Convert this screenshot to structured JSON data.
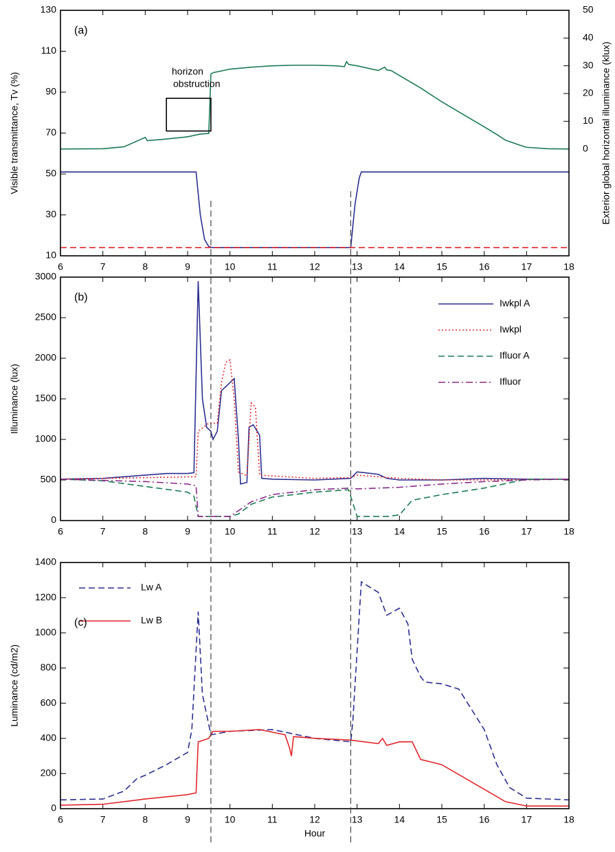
{
  "chart_data": [
    {
      "type": "line",
      "panel_label": "(a)",
      "ylabel": "Visible transmittance, Tv (%)",
      "y2label": "Exterior global horizontal illuminance (klux)",
      "xlim": [
        6,
        18
      ],
      "xticks": [
        6,
        7,
        8,
        9,
        10,
        11,
        12,
        13,
        14,
        15,
        16,
        17,
        18
      ],
      "ylim": [
        10,
        130
      ],
      "yticks": [
        10,
        30,
        50,
        70,
        90,
        110,
        130
      ],
      "y2lim": [
        -38.5,
        50
      ],
      "y2ticks": [
        0,
        10,
        20,
        30,
        40,
        50
      ],
      "vlines": [
        9.55,
        12.85
      ],
      "annotations": [
        {
          "text_lines": [
            "horizon",
            "obstruction"
          ],
          "box": {
            "x": [
              8.5,
              9.55
            ],
            "y": [
              71,
              87
            ]
          }
        }
      ],
      "series": [
        {
          "color": "#1a7a52",
          "style": "solid",
          "axis": "y2",
          "x": [
            6,
            7,
            7.5,
            7.9,
            8,
            8.05,
            8.5,
            9,
            9.3,
            9.5,
            9.55,
            9.6,
            10,
            10.5,
            11,
            11.5,
            12,
            12.5,
            12.7,
            12.75,
            12.8,
            13,
            13.5,
            13.65,
            13.7,
            13.8,
            14,
            14.5,
            15,
            15.5,
            16,
            16.3,
            16.5,
            16.8,
            17,
            17.5,
            18
          ],
          "values": [
            0,
            0.1,
            0.8,
            3.5,
            4.2,
            3,
            3.6,
            4.4,
            5.4,
            5.6,
            27,
            27.5,
            28.8,
            29.5,
            30,
            30.2,
            30.2,
            30,
            29.7,
            31.5,
            30.5,
            30,
            28.3,
            29.5,
            28.5,
            28.3,
            26.5,
            22,
            17,
            12.5,
            8,
            5.2,
            3.2,
            1.6,
            0.6,
            0.1,
            0
          ]
        },
        {
          "color": "#2b2f8f",
          "style": "solid",
          "x": [
            6,
            9.2,
            9.3,
            9.4,
            9.5,
            9.6,
            12.85,
            12.95,
            13.05,
            13.1,
            18
          ],
          "values": [
            51,
            51,
            30,
            18,
            14.5,
            14,
            14,
            35,
            48,
            51,
            51
          ]
        },
        {
          "color": "#e0262a",
          "style": "dashed",
          "x": [
            6,
            18
          ],
          "values": [
            14,
            14
          ]
        }
      ]
    },
    {
      "type": "line",
      "panel_label": "(b)",
      "ylabel": "Illuminance (lux)",
      "legend": "upper right",
      "xlim": [
        6,
        18
      ],
      "xticks": [
        6,
        7,
        8,
        9,
        10,
        11,
        12,
        13,
        14,
        15,
        16,
        17,
        18
      ],
      "ylim": [
        0,
        3000
      ],
      "yticks": [
        0,
        500,
        1000,
        1500,
        2000,
        2500,
        3000
      ],
      "series": [
        {
          "name": "Iwkpl A",
          "color": "#2b2f8f",
          "style": "solid",
          "x": [
            6,
            7,
            8,
            8.5,
            9,
            9.15,
            9.25,
            9.35,
            9.45,
            9.55,
            9.6,
            9.7,
            9.8,
            9.9,
            10,
            10.1,
            10.2,
            10.25,
            10.4,
            10.45,
            10.55,
            10.7,
            10.75,
            11,
            12,
            12.85,
            13,
            13.5,
            13.7,
            14,
            15,
            16,
            17,
            18
          ],
          "values": [
            510,
            520,
            560,
            580,
            580,
            590,
            2950,
            1500,
            1150,
            1100,
            1000,
            1100,
            1600,
            1650,
            1700,
            1750,
            1000,
            450,
            470,
            1150,
            1180,
            1050,
            520,
            510,
            500,
            520,
            600,
            570,
            520,
            500,
            500,
            520,
            510,
            510
          ]
        },
        {
          "name": "Iwkpl",
          "color": "#e0262a",
          "style": "dotted",
          "x": [
            6,
            9.2,
            9.25,
            9.5,
            9.7,
            9.8,
            9.9,
            10,
            10.1,
            10.2,
            10.4,
            10.5,
            10.6,
            10.7,
            11,
            12,
            12.85,
            13,
            14,
            15,
            16,
            18
          ],
          "values": [
            510,
            540,
            1100,
            1200,
            1200,
            1700,
            1950,
            1980,
            1500,
            600,
            550,
            1450,
            1400,
            560,
            550,
            520,
            530,
            560,
            520,
            500,
            500,
            510
          ]
        },
        {
          "name": "Ifluor A",
          "color": "#1a7a52",
          "style": "dashed",
          "x": [
            6,
            7,
            8,
            9,
            9.15,
            9.25,
            10,
            10.2,
            10.5,
            11,
            12,
            12.8,
            13,
            13.7,
            14,
            14.3,
            15,
            16,
            17,
            18
          ],
          "values": [
            510,
            490,
            420,
            350,
            300,
            50,
            50,
            80,
            200,
            290,
            350,
            380,
            50,
            50,
            70,
            250,
            320,
            400,
            510,
            510
          ]
        },
        {
          "name": "Ifluor",
          "color": "#8a2a8a",
          "style": "dashdot",
          "x": [
            6,
            8,
            9,
            9.2,
            9.25,
            10,
            10.5,
            11,
            12,
            12.85,
            13,
            14,
            15,
            16,
            17,
            18
          ],
          "values": [
            510,
            480,
            450,
            430,
            50,
            50,
            230,
            320,
            380,
            400,
            390,
            410,
            450,
            480,
            500,
            510
          ]
        }
      ]
    },
    {
      "type": "line",
      "panel_label": "(c)",
      "ylabel": "Luminance (cd/m2)",
      "xlabel": "Hour",
      "legend": "upper left",
      "xlim": [
        6,
        18
      ],
      "xticks": [
        6,
        7,
        8,
        9,
        10,
        11,
        12,
        13,
        14,
        15,
        16,
        17,
        18
      ],
      "ylim": [
        0,
        1400
      ],
      "yticks": [
        0,
        200,
        400,
        600,
        800,
        1000,
        1200,
        1400
      ],
      "series": [
        {
          "name": "Lw A",
          "color": "#2b2f8f",
          "style": "dashed",
          "x": [
            6,
            7,
            7.5,
            7.8,
            8,
            8.5,
            9,
            9.1,
            9.25,
            9.35,
            9.55,
            10,
            11,
            12,
            12.85,
            12.9,
            13.1,
            13.5,
            13.7,
            14,
            14.2,
            14.3,
            14.5,
            14.6,
            15,
            15.4,
            16,
            16.3,
            16.6,
            17,
            18
          ],
          "values": [
            50,
            55,
            100,
            170,
            190,
            250,
            320,
            450,
            1120,
            650,
            420,
            440,
            450,
            400,
            380,
            500,
            1290,
            1230,
            1100,
            1140,
            1050,
            850,
            750,
            720,
            710,
            680,
            450,
            250,
            120,
            60,
            50
          ]
        },
        {
          "name": "Lw B",
          "color": "#e0262a",
          "style": "solid",
          "x": [
            6,
            7,
            7.5,
            8,
            9,
            9.2,
            9.25,
            9.5,
            9.6,
            10,
            10.7,
            11.3,
            11.4,
            11.45,
            11.5,
            12,
            12.85,
            13.5,
            13.6,
            13.7,
            14,
            14.3,
            14.5,
            15,
            15.5,
            16,
            16.5,
            17,
            18
          ],
          "values": [
            20,
            25,
            40,
            55,
            80,
            90,
            380,
            400,
            440,
            440,
            450,
            420,
            350,
            300,
            410,
            400,
            390,
            370,
            400,
            360,
            380,
            380,
            280,
            250,
            180,
            110,
            40,
            15,
            15
          ]
        }
      ]
    }
  ]
}
